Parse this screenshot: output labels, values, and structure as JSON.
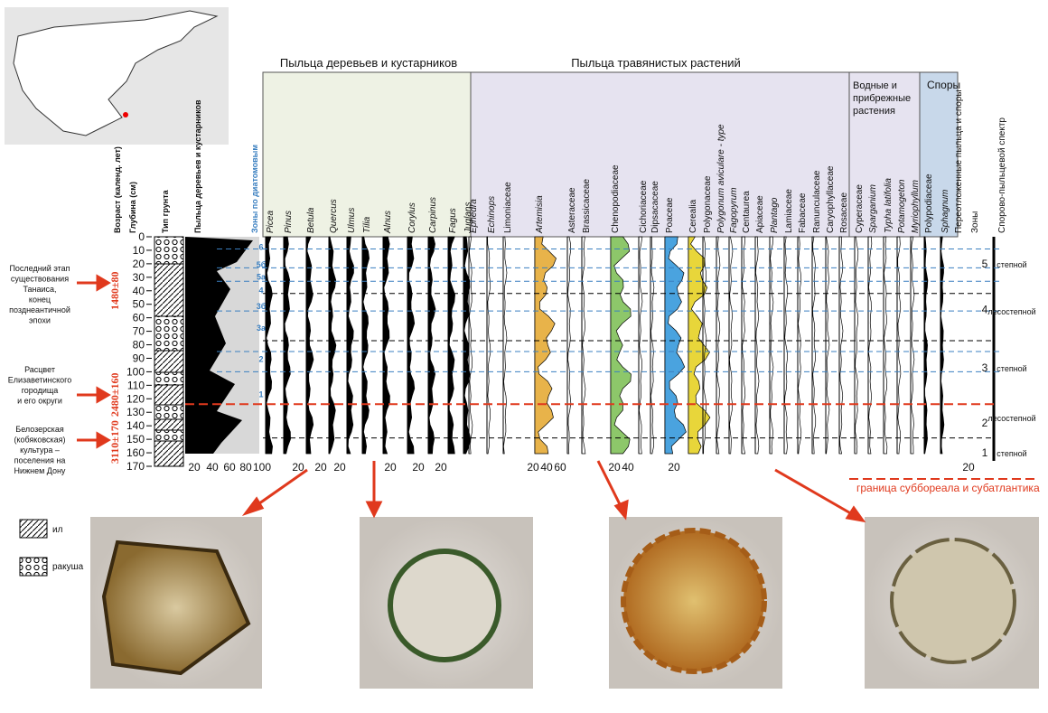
{
  "headers": {
    "trees": "Пыльца деревьев и кустарников",
    "herbs": "Пыльца травянистых растений",
    "aquatic": [
      "Водные и",
      "прибрежные",
      "растения"
    ],
    "spores": "Споры"
  },
  "left_columns": [
    "Возраст (календ. лет)",
    "Глубина (см)",
    "Тип грунта",
    "Пыльца деревьев и кустарников",
    "Зоны по диатомовым"
  ],
  "taxa": [
    {
      "name": "Picea",
      "italic": true
    },
    {
      "name": "Pinus",
      "italic": true
    },
    {
      "name": "Betula",
      "italic": true
    },
    {
      "name": "Quercus",
      "italic": true
    },
    {
      "name": "Ulmus",
      "italic": true
    },
    {
      "name": "Tilia",
      "italic": true
    },
    {
      "name": "Alnus",
      "italic": true
    },
    {
      "name": "Corylus",
      "italic": true
    },
    {
      "name": "Carpinus",
      "italic": true
    },
    {
      "name": "Fagus",
      "italic": true
    },
    {
      "name": "Juglans",
      "italic": true
    },
    {
      "name": "Ephedra",
      "italic": true
    },
    {
      "name": "Echinops",
      "italic": true
    },
    {
      "name": "Limoniaceae",
      "italic": false
    },
    {
      "name": "Artemisia",
      "italic": true
    },
    {
      "name": "Asteraceae",
      "italic": false
    },
    {
      "name": "Brassicaceae",
      "italic": false
    },
    {
      "name": "Chenopodiaceae",
      "italic": false
    },
    {
      "name": "Cichoriaceae",
      "italic": false
    },
    {
      "name": "Dipsacaceae",
      "italic": false
    },
    {
      "name": "Poaceae",
      "italic": false
    },
    {
      "name": "Cerealia",
      "italic": false
    },
    {
      "name": "Polygonaceae",
      "italic": false
    },
    {
      "name": "Polygonum aviculare - type",
      "italic": true
    },
    {
      "name": "Fagopyrum",
      "italic": true
    },
    {
      "name": "Centaurea",
      "italic": false
    },
    {
      "name": "Apiaceae",
      "italic": false
    },
    {
      "name": "Plantago",
      "italic": true
    },
    {
      "name": "Lamiaceae",
      "italic": false
    },
    {
      "name": "Fabaceae",
      "italic": false
    },
    {
      "name": "Ranunculaceae",
      "italic": false
    },
    {
      "name": "Caryophyllaceae",
      "italic": false
    },
    {
      "name": "Rosaceae",
      "italic": false
    },
    {
      "name": "Cyperaceae",
      "italic": false
    },
    {
      "name": "Sparganium",
      "italic": true
    },
    {
      "name": "Typha latifolia",
      "italic": true
    },
    {
      "name": "Potamogeton",
      "italic": true
    },
    {
      "name": "Myriophyllum",
      "italic": true
    },
    {
      "name": "Polypodiaceae",
      "italic": false
    },
    {
      "name": "Sphagnum",
      "italic": true
    }
  ],
  "right_columns": [
    "Переотложенные пыльца и споры",
    "Зоны",
    "Спорово-пыльцевой спектр"
  ],
  "depth_ticks": [
    0,
    10,
    20,
    30,
    40,
    50,
    60,
    70,
    80,
    90,
    100,
    110,
    120,
    130,
    140,
    150,
    160,
    170
  ],
  "ages": [
    "1480±80",
    "2480±160",
    "3110±170"
  ],
  "events": [
    [
      "Последний этап",
      "существования",
      "Танаиса,",
      "конец",
      "позднеантичной",
      "эпохи"
    ],
    [
      "Расцвет",
      "Елизаветинского",
      "городища",
      "и его округи"
    ],
    [
      "Белозерская",
      "(кобяковская)",
      "культура –",
      "поселения на",
      "Нижнем Дону"
    ]
  ],
  "diatom_zones": [
    "6",
    "5б",
    "5а",
    "4",
    "3б",
    "3а",
    "2",
    "1"
  ],
  "zones": [
    "5",
    "4",
    "3",
    "2",
    "1"
  ],
  "spectra": [
    "степной",
    "лесостепной",
    "степной",
    "лесостепной",
    "степной"
  ],
  "scales": [
    [
      20,
      40,
      60,
      80,
      100
    ],
    [
      20
    ],
    [
      20
    ],
    [
      20
    ],
    [
      20
    ],
    [
      20
    ],
    [
      20
    ],
    [
      20,
      40,
      60
    ],
    [
      20,
      40
    ],
    [
      20
    ],
    [
      20
    ]
  ],
  "legend": [
    "ил",
    "ракуша"
  ],
  "boundary": "граница суббореала и субатлантика"
}
